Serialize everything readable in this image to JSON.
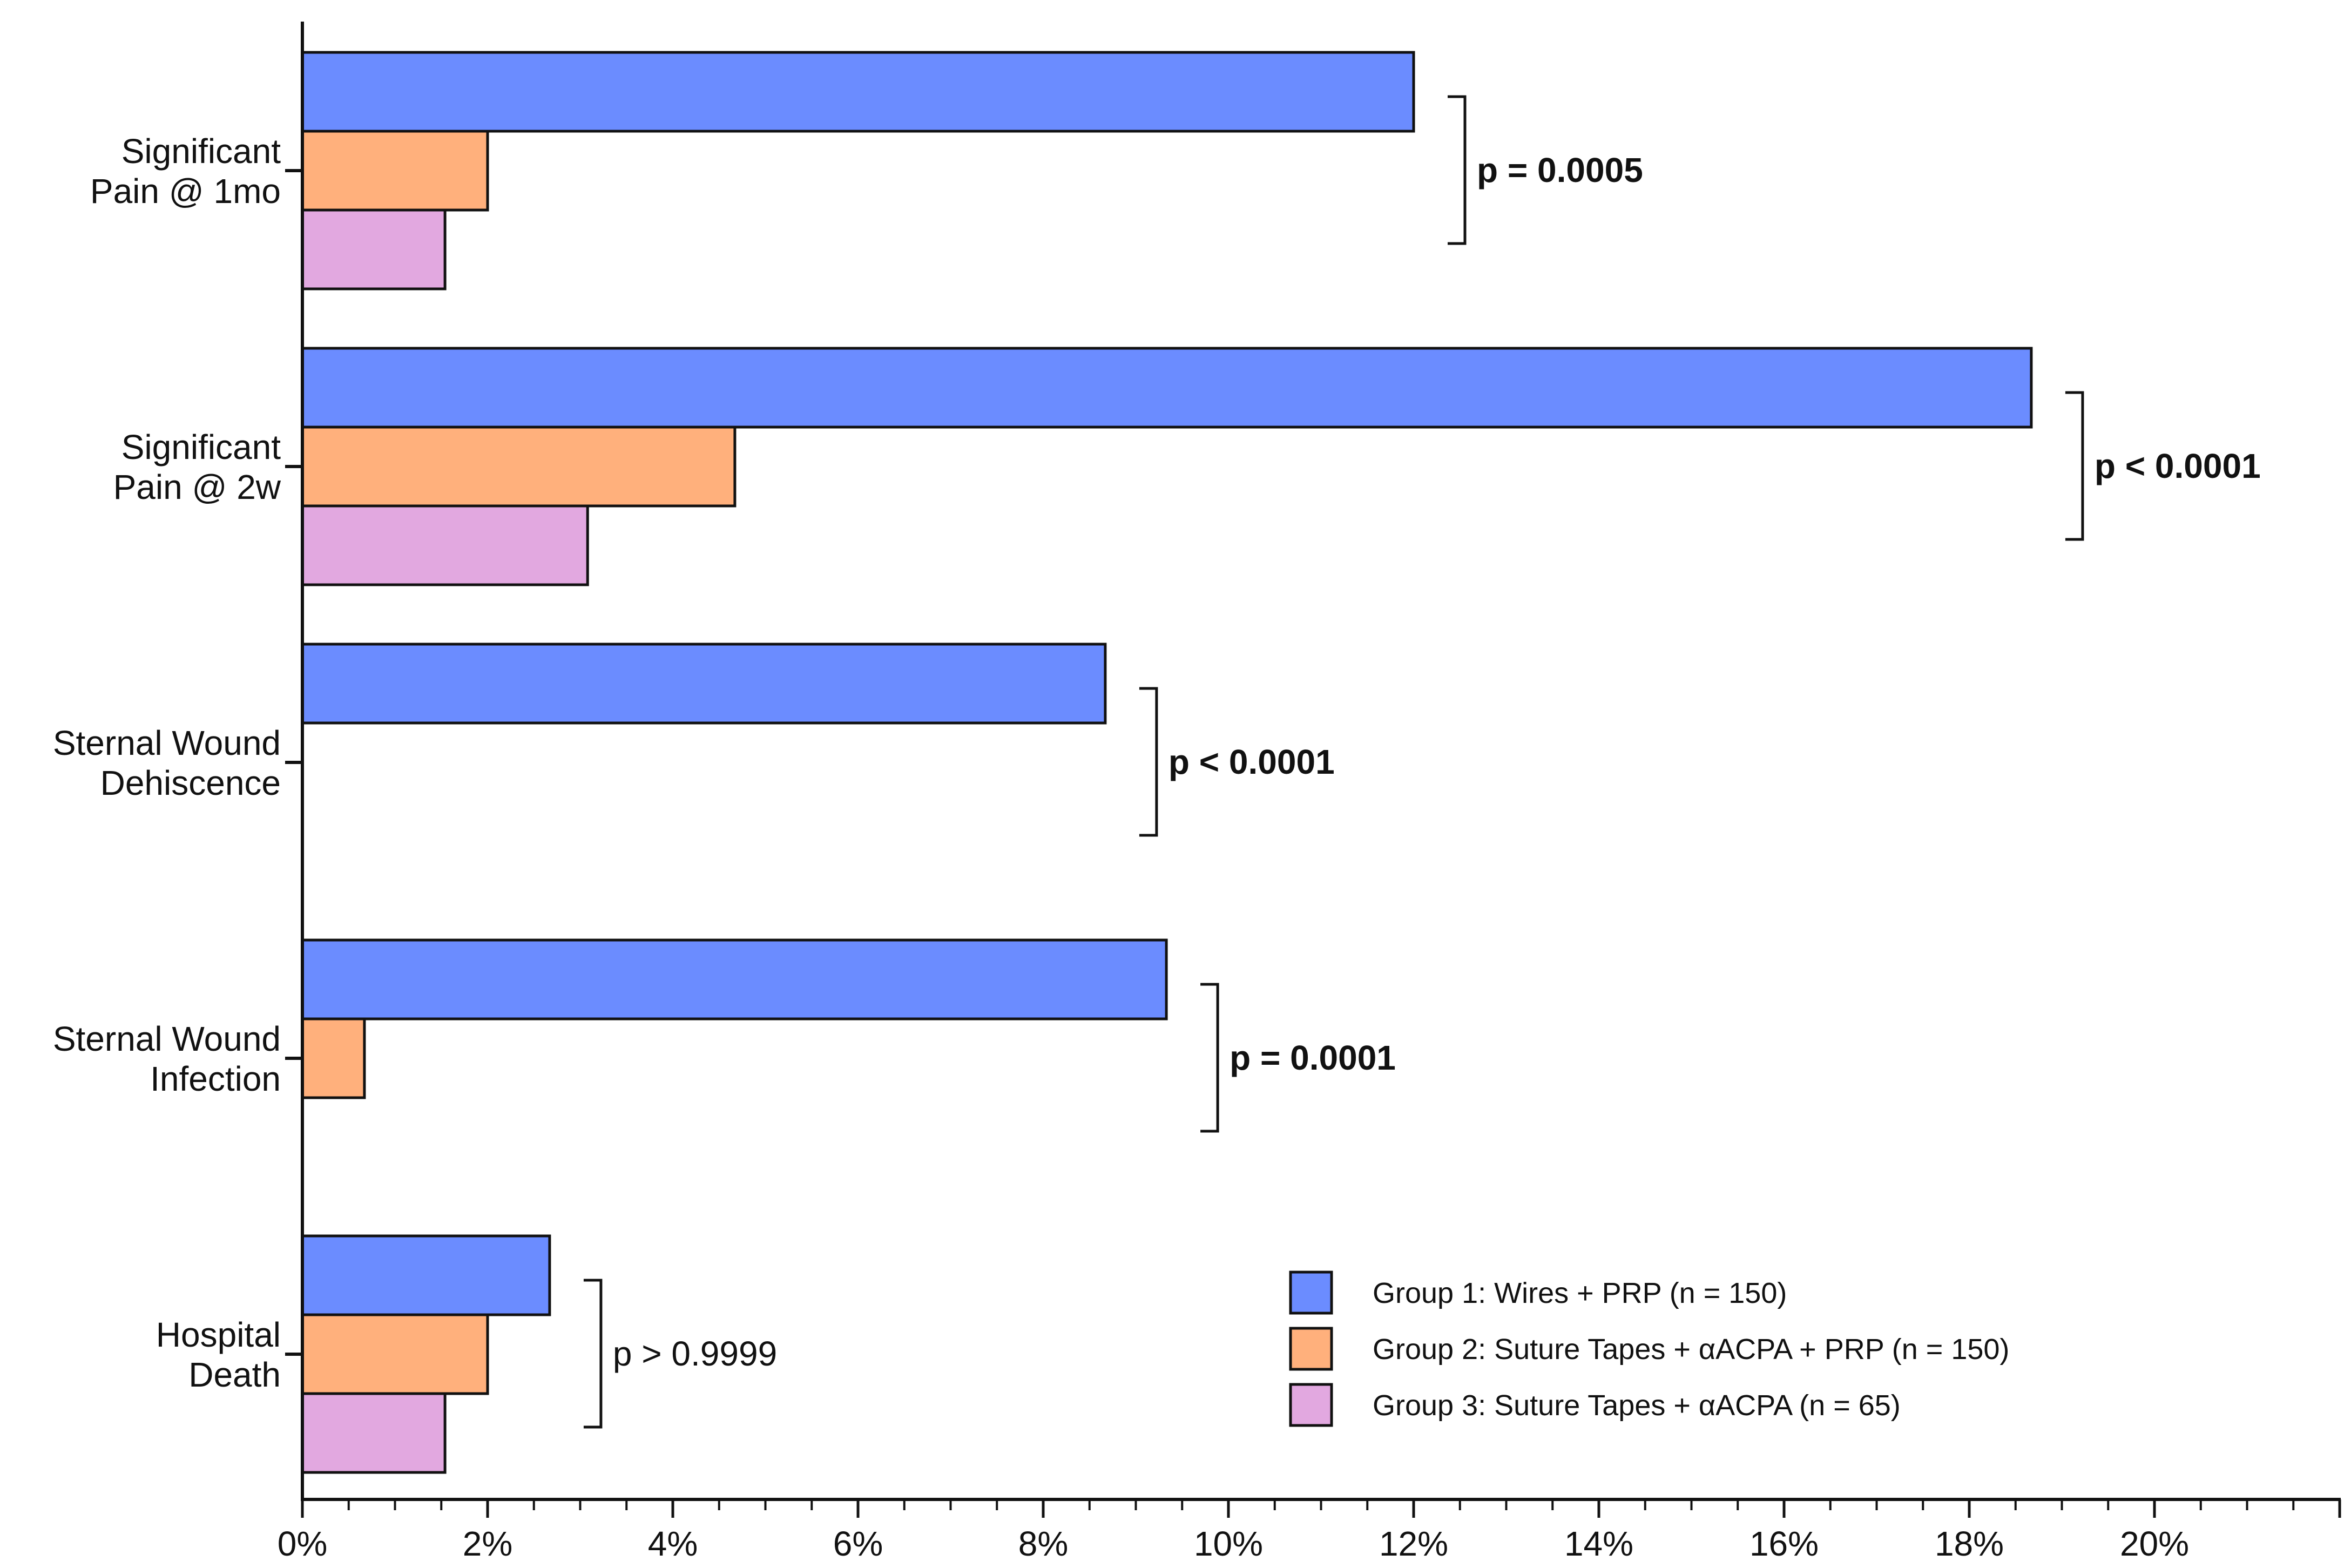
{
  "chart_data": {
    "type": "bar",
    "orientation": "horizontal",
    "title": "",
    "xlabel": "",
    "ylabel": "",
    "xlim": [
      0,
      22
    ],
    "x_ticks": [
      {
        "value": 0,
        "label": "0%"
      },
      {
        "value": 2,
        "label": "2%"
      },
      {
        "value": 4,
        "label": "4%"
      },
      {
        "value": 6,
        "label": "6%"
      },
      {
        "value": 8,
        "label": "8%"
      },
      {
        "value": 10,
        "label": "10%"
      },
      {
        "value": 12,
        "label": "12%"
      },
      {
        "value": 14,
        "label": "14%"
      },
      {
        "value": 16,
        "label": "16%"
      },
      {
        "value": 18,
        "label": "18%"
      },
      {
        "value": 20,
        "label": "20%"
      }
    ],
    "categories": [
      [
        "Significant",
        "Pain @ 1mo"
      ],
      [
        "Significant",
        "Pain @ 2w"
      ],
      [
        "Sternal Wound",
        "Dehiscence"
      ],
      [
        "Sternal Wound",
        "Infection"
      ],
      [
        "Hospital",
        "Death"
      ]
    ],
    "series": [
      {
        "name": "Group 1: Wires + PRP (n = 150)",
        "color": "#6b8cff",
        "values": [
          12.0,
          18.67,
          8.67,
          9.33,
          2.67
        ]
      },
      {
        "name": "Group 2: Suture Tapes + αACPA + PRP (n = 150)",
        "color": "#ffb07c",
        "values": [
          2.0,
          4.67,
          0.0,
          0.67,
          2.0
        ]
      },
      {
        "name": "Group 3: Suture Tapes + αACPA (n = 65)",
        "color": "#e2a8e0",
        "values": [
          1.54,
          3.08,
          0.0,
          0.0,
          1.54
        ]
      }
    ],
    "annotations": [
      {
        "category": 0,
        "text": "p = 0.0005",
        "bold": true
      },
      {
        "category": 1,
        "text": "p < 0.0001",
        "bold": true
      },
      {
        "category": 2,
        "text": "p < 0.0001",
        "bold": true
      },
      {
        "category": 3,
        "text": "p = 0.0001",
        "bold": true
      },
      {
        "category": 4,
        "text": "p > 0.9999",
        "bold": false
      }
    ],
    "legend_position": "bottom-right",
    "grid": false
  }
}
